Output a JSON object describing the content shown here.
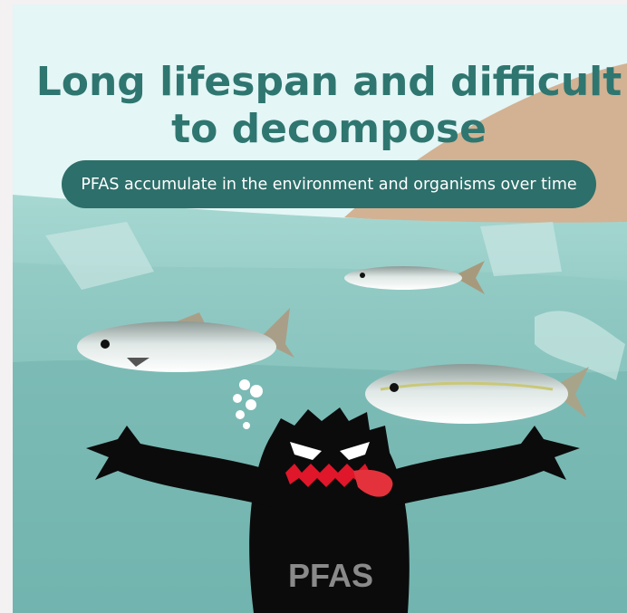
{
  "title": {
    "line1": "Long lifespan and difficult",
    "line2": "to decompose"
  },
  "subtitle": "PFAS accumulate in the environment and organisms over time",
  "character_label": "PFAS"
}
